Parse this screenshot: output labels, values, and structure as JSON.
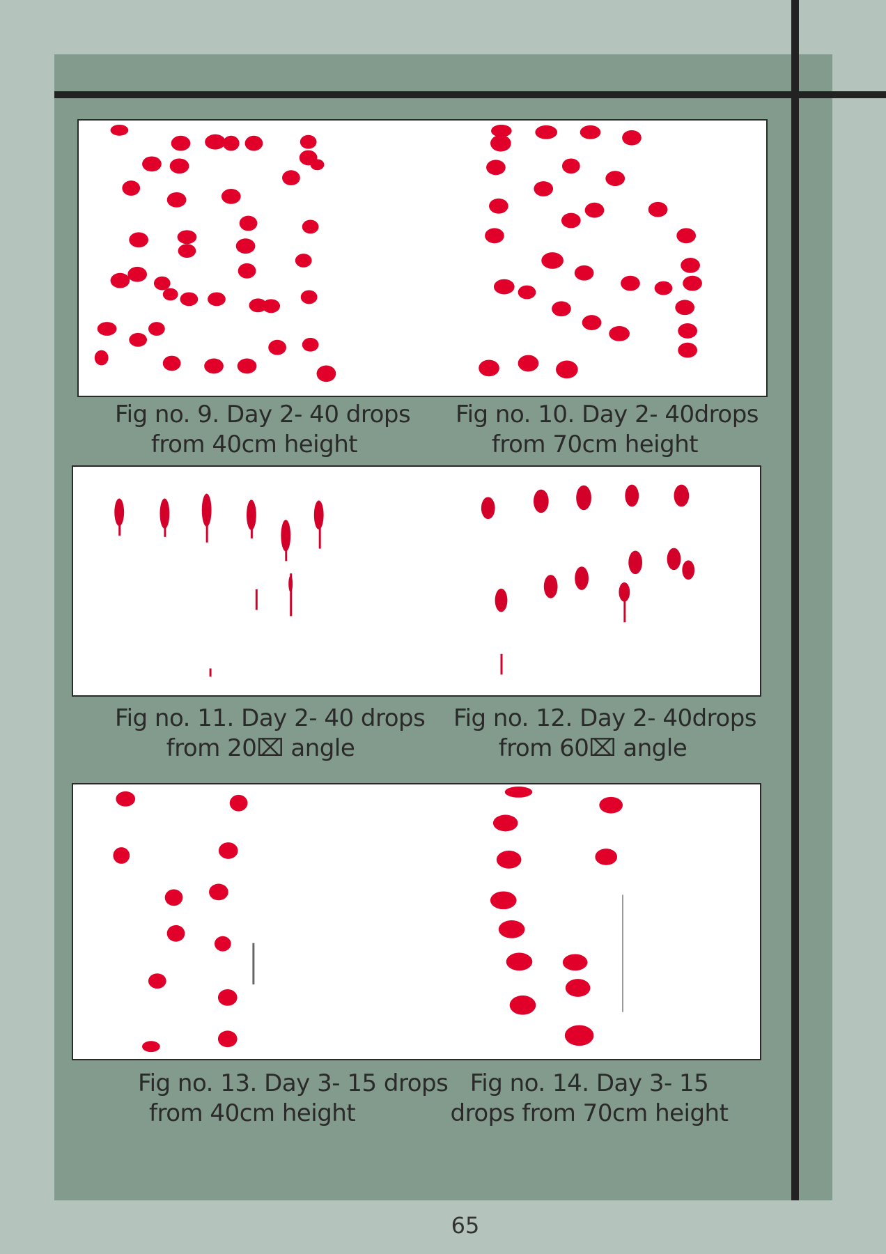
{
  "figures": [
    {
      "caption_line1": "Fig no. 9. Day 2- 40 drops",
      "caption_line2": "from 40cm height"
    },
    {
      "caption_line1": "Fig no. 10. Day 2- 40drops",
      "caption_line2": "from 70cm height"
    },
    {
      "caption_line1": "Fig no. 11. Day 2- 40 drops",
      "caption_line2": "from 20⌧ angle"
    },
    {
      "caption_line1": "Fig no. 12. Day 2- 40drops",
      "caption_line2": "from 60⌧ angle"
    },
    {
      "caption_line1": "Fig no. 13. Day 3- 15 drops",
      "caption_line2": "from 40cm height"
    },
    {
      "caption_line1": "Fig no. 14. Day 3- 15",
      "caption_line2": "drops  from 70cm height"
    }
  ],
  "page_number": "65",
  "colors": {
    "background": "#b4c3bb",
    "panel": "#839b8d",
    "bar": "#222222",
    "drop": "#e0002a"
  }
}
